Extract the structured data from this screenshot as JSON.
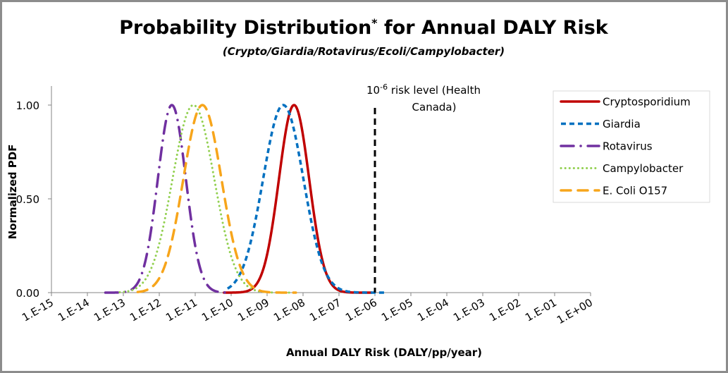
{
  "chart_data": {
    "type": "line",
    "title": "Probability Distribution",
    "title_superscript": "*",
    "title_suffix": " for Annual DALY Risk",
    "subtitle": "(Crypto/Giardia/Rotavirus/Ecoli/Campylobacter)",
    "xlabel": "Annual DALY Risk (DALY/pp/year)",
    "ylabel": "Normalized PDF",
    "xscale": "log10",
    "xlim_log10": [
      -15,
      0
    ],
    "ylim": [
      0,
      1
    ],
    "x_tick_labels": [
      "1.E-15",
      "1.E-14",
      "1.E-13",
      "1.E-12",
      "1.E-11",
      "1.E-10",
      "1.E-09",
      "1.E-08",
      "1.E-07",
      "1.E-06",
      "1.E-05",
      "1.E-04",
      "1.E-03",
      "1.E-02",
      "1.E-01",
      "1.E+00"
    ],
    "y_ticks": [
      0,
      0.5,
      1
    ],
    "y_tick_labels": [
      "0.00",
      "0.50",
      "1.00"
    ],
    "grid": false,
    "legend_position": "top-right",
    "series": [
      {
        "name": "Cryptosporidium",
        "color": "#C00000",
        "style": "solid",
        "peak_log10": -8.25,
        "sigma_log10": 0.42,
        "range_log10": [
          -10.2,
          -6.1
        ]
      },
      {
        "name": "Giardia",
        "color": "#0070C0",
        "style": "dash",
        "peak_log10": -8.55,
        "sigma_log10": 0.56,
        "range_log10": [
          -10.1,
          -5.7
        ]
      },
      {
        "name": "Rotavirus",
        "color": "#7030A0",
        "style": "dash-dot",
        "peak_log10": -11.65,
        "sigma_log10": 0.39,
        "range_log10": [
          -13.5,
          -10.0
        ]
      },
      {
        "name": "Campylobacter",
        "color": "#92D050",
        "style": "dot",
        "peak_log10": -11.05,
        "sigma_log10": 0.58,
        "range_log10": [
          -13.1,
          -8.3
        ]
      },
      {
        "name": "E. Coli O157",
        "color": "#F7A51B",
        "style": "long-dash",
        "peak_log10": -10.8,
        "sigma_log10": 0.53,
        "range_log10": [
          -12.6,
          -8.2
        ]
      }
    ],
    "reference_line": {
      "x": 1e-06,
      "color": "#000000",
      "label_base": "10",
      "label_exponent": "-6",
      "label_line1_rest": " risk level (Health",
      "label_line2": "Canada)"
    }
  }
}
